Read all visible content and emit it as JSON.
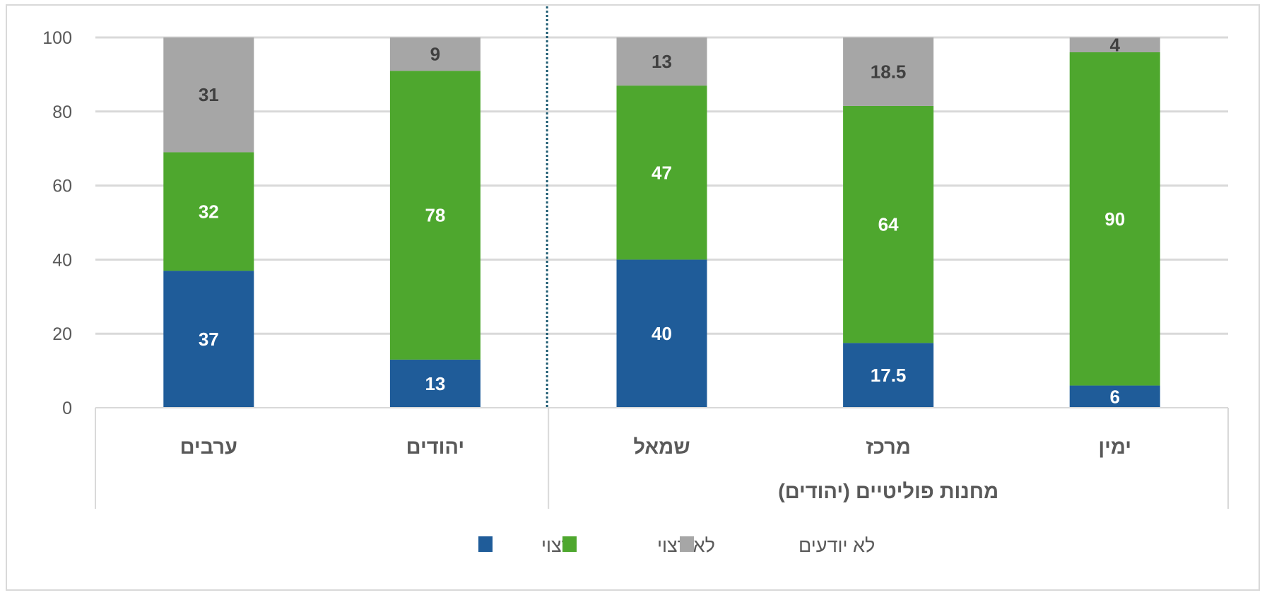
{
  "chart_data": {
    "type": "bar",
    "stacked": true,
    "direction": "rtl",
    "categories": [
      "ימין",
      "מרכז",
      "שמאל",
      "יהודים",
      "ערבים"
    ],
    "group_label": "מחנות פוליטיים (יהודים)",
    "group_members": [
      "ימין",
      "מרכז",
      "שמאל"
    ],
    "series": [
      {
        "name": "רצוי",
        "color": "#1f5c99",
        "label_color": "#ffffff",
        "values": [
          6,
          17.5,
          40,
          13,
          37
        ]
      },
      {
        "name": "לא רצוי",
        "color": "#4ea72e",
        "label_color": "#ffffff",
        "values": [
          90,
          64,
          47,
          78,
          32
        ]
      },
      {
        "name": "לא יודעים",
        "color": "#a6a6a6",
        "label_color": "#404040",
        "values": [
          4,
          18.5,
          13,
          9,
          31
        ]
      }
    ],
    "legend_order": [
      "לא יודעים",
      "לא רצוי",
      "רצוי"
    ],
    "yticks": [
      0,
      20,
      40,
      60,
      80,
      100
    ],
    "ylim": [
      0,
      100
    ],
    "grid": true,
    "legend_placement": "bottom",
    "divider": "dotted line between שמאל and יהודים",
    "divider_color": "#1f5c73",
    "gridline_color": "#d9d9d9"
  }
}
